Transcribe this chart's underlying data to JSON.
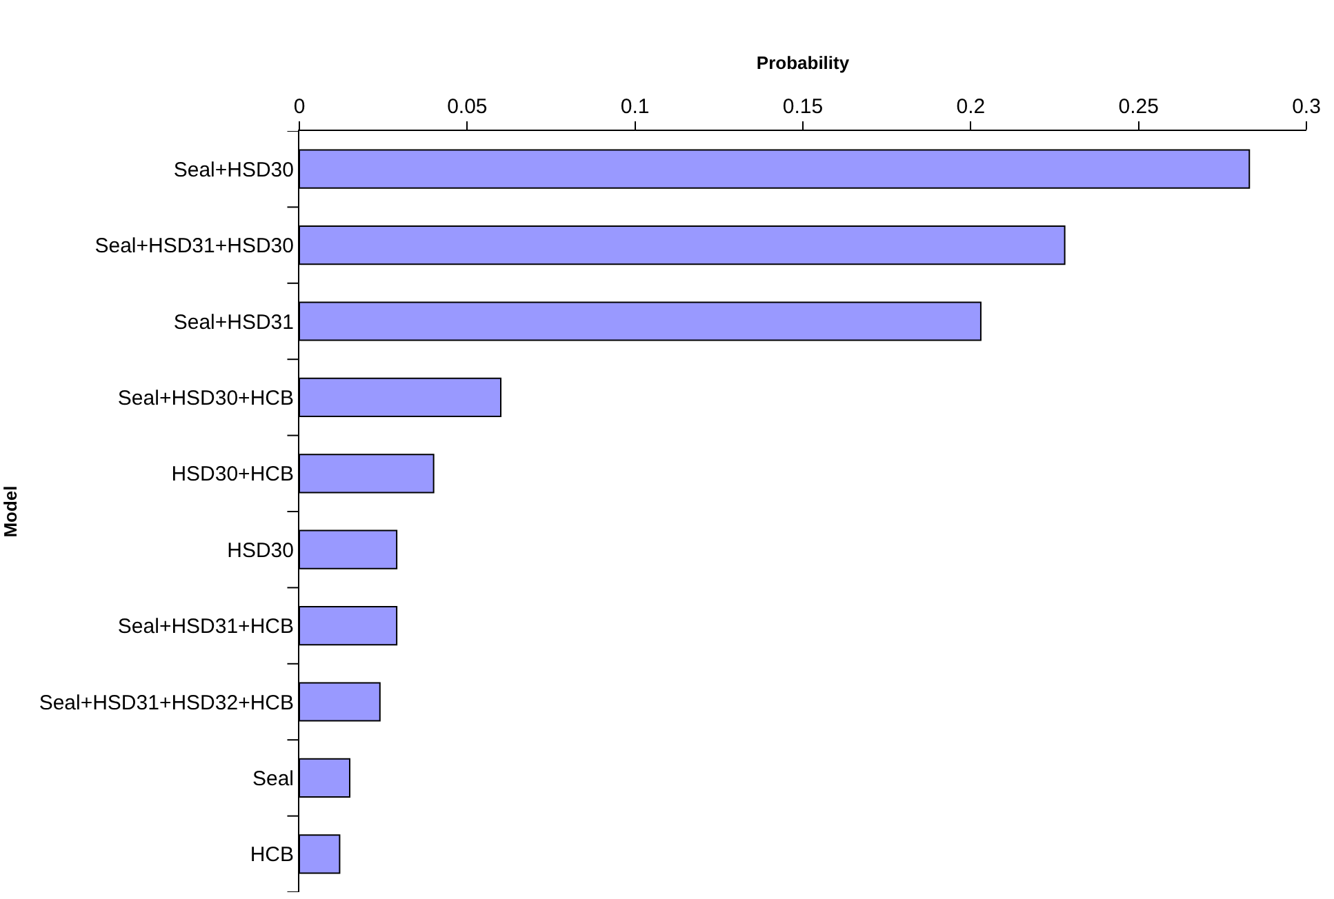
{
  "chart_data": {
    "type": "bar",
    "orientation": "horizontal",
    "xlabel": "Probability",
    "ylabel": "Model",
    "categories": [
      "Seal+HSD30",
      "Seal+HSD31+HSD30",
      "Seal+HSD31",
      "Seal+HSD30+HCB",
      "HSD30+HCB",
      "HSD30",
      "Seal+HSD31+HCB",
      "Seal+HSD31+HSD32+HCB",
      "Seal",
      "HCB"
    ],
    "values": [
      0.283,
      0.228,
      0.203,
      0.06,
      0.04,
      0.029,
      0.029,
      0.024,
      0.015,
      0.012
    ],
    "color": "#9999ff",
    "xlim": [
      0,
      0.3
    ],
    "xticks": [
      0,
      0.05,
      0.1,
      0.15,
      0.2,
      0.25,
      0.3
    ]
  }
}
